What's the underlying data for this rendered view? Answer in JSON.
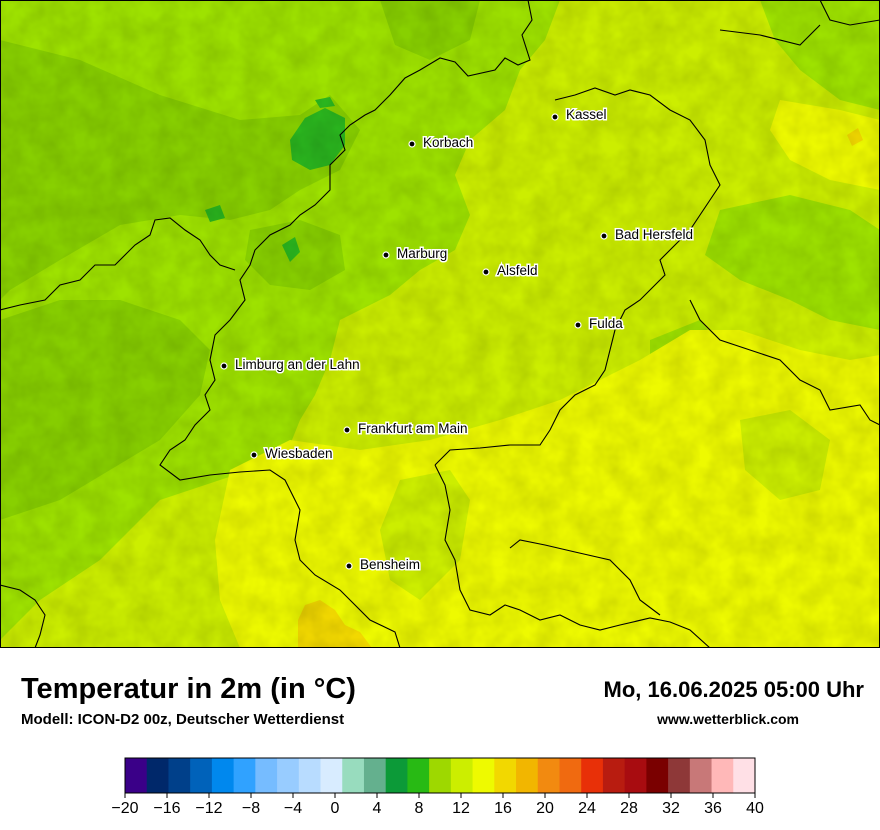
{
  "map": {
    "cities": [
      {
        "name": "Kassel"
      },
      {
        "name": "Korbach"
      },
      {
        "name": "Bad Hersfeld"
      },
      {
        "name": "Marburg"
      },
      {
        "name": "Alsfeld"
      },
      {
        "name": "Fulda"
      },
      {
        "name": "Limburg an der Lahn"
      },
      {
        "name": "Frankfurt am Main"
      },
      {
        "name": "Wiesbaden"
      },
      {
        "name": "Bensheim"
      }
    ],
    "colors": {
      "t10": "#88d000",
      "t12": "#9ee200",
      "t14": "#ccee00",
      "t16": "#eefa00",
      "t18": "#f2d800",
      "t8": "#2ab51e"
    }
  },
  "info": {
    "title": "Temperatur in 2m (in °C)",
    "subtitle": "Modell: ICON-D2 00z, Deutscher Wetterdienst",
    "datetime": "Mo, 16.06.2025 05:00 Uhr",
    "website": "www.wetterblick.com"
  },
  "legend": {
    "ticks": [
      "−20",
      "−16",
      "−12",
      "−8",
      "−4",
      "0",
      "4",
      "8",
      "12",
      "16",
      "20",
      "24",
      "28",
      "32",
      "36",
      "40"
    ],
    "colors": [
      "#3a0088",
      "#00286a",
      "#00408a",
      "#0062ba",
      "#0088ee",
      "#30a2ff",
      "#76bcff",
      "#98ccff",
      "#b8dcff",
      "#d8ecff",
      "#98dcbe",
      "#64b08e",
      "#0c9a38",
      "#28ba14",
      "#9ed800",
      "#ccee00",
      "#eefa00",
      "#f2d800",
      "#f2b600",
      "#f28a10",
      "#f06a10",
      "#e83008",
      "#b81c10",
      "#a80c10",
      "#7a0000",
      "#8e3838",
      "#c87878",
      "#ffb8b8",
      "#ffe0e6"
    ]
  }
}
